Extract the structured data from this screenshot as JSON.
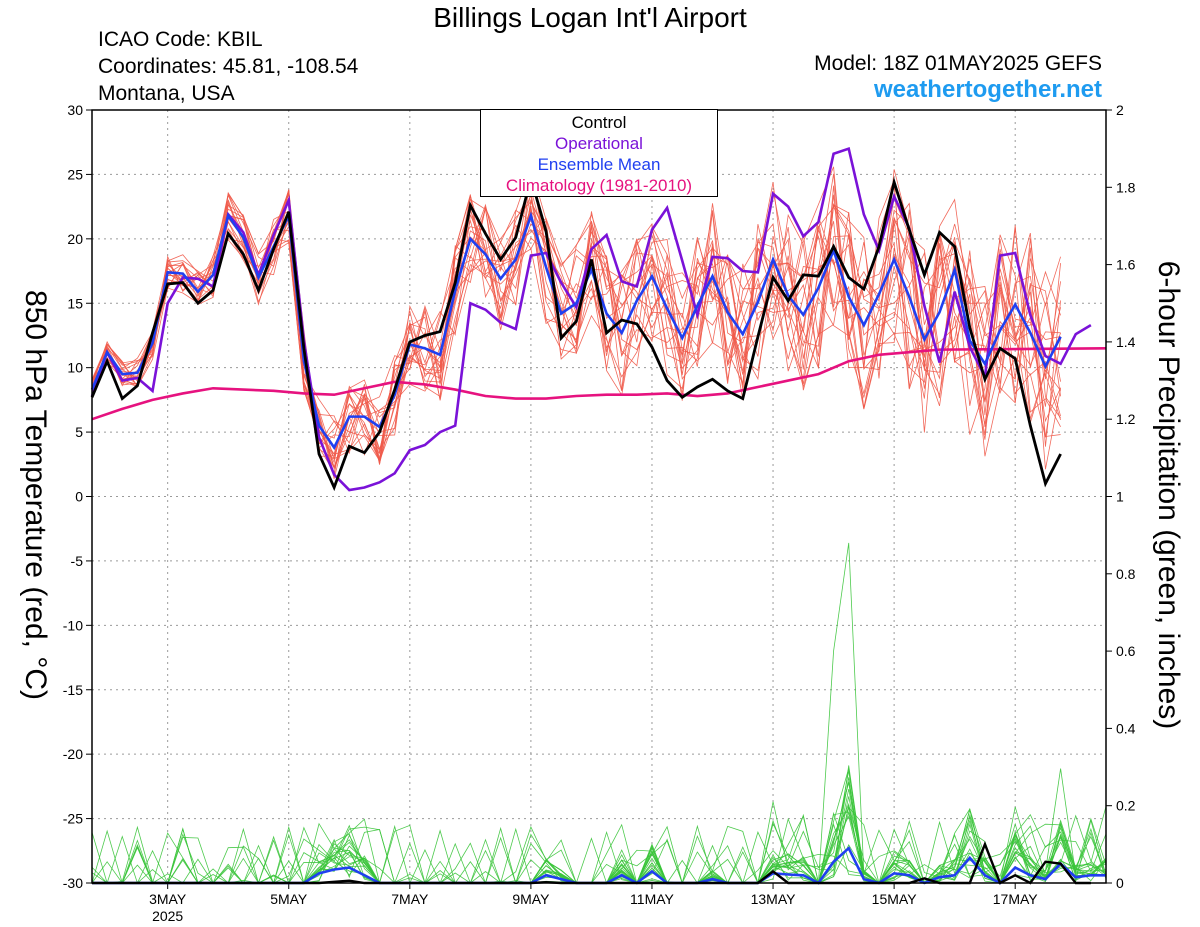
{
  "header": {
    "title": "Billings Logan Int'l Airport",
    "icao": "ICAO Code: KBIL",
    "coordinates": "Coordinates: 45.81, -108.54",
    "region": "Montana, USA",
    "model": "Model: 18Z 01MAY2025 GEFS",
    "website": "weathertogether.net"
  },
  "colors": {
    "members": "#f05a4a",
    "control": "#000000",
    "operational": "#7a12d8",
    "ensemble_mean": "#1f3ff0",
    "climatology": "#e6127f",
    "precip_members": "#3ac43a",
    "website": "#1e9bf0"
  },
  "chart_data": {
    "type": "line",
    "ylabel_left": "850 hPa Temperature (red, °C)",
    "ylabel_right": "6-hour Precipitation (green, inches)",
    "ylim_left": [
      -30,
      30
    ],
    "ylim_right": [
      0,
      2
    ],
    "yticks_left": [
      30,
      25,
      20,
      15,
      10,
      5,
      0,
      -5,
      -10,
      -15,
      -20,
      -25,
      -30
    ],
    "yticks_right": [
      "2",
      "1.8",
      "1.6",
      "1.4",
      "1.2",
      "1",
      "0.8",
      "0.6",
      "0.4",
      "0.2",
      "0"
    ],
    "xlim_hours": [
      -6,
      396
    ],
    "x_units": "hours after 02 May 2025 00Z",
    "x_ticks": [
      {
        "hour": 24,
        "label": "3MAY",
        "sub": "2025"
      },
      {
        "hour": 72,
        "label": "5MAY",
        "sub": ""
      },
      {
        "hour": 120,
        "label": "7MAY",
        "sub": ""
      },
      {
        "hour": 168,
        "label": "9MAY",
        "sub": ""
      },
      {
        "hour": 216,
        "label": "11MAY",
        "sub": ""
      },
      {
        "hour": 264,
        "label": "13MAY",
        "sub": ""
      },
      {
        "hour": 312,
        "label": "15MAY",
        "sub": ""
      },
      {
        "hour": 360,
        "label": "17MAY",
        "sub": ""
      }
    ],
    "legend": [
      "Control",
      "Operational",
      "Ensemble Mean",
      "Climatology (1981-2010)"
    ],
    "series_temp": {
      "x_start_hour": -6,
      "x_step_hours": 6,
      "control": [
        7.7,
        10.5,
        7.6,
        8.6,
        12.7,
        16.5,
        16.6,
        15.0,
        16.0,
        20.4,
        18.8,
        16.0,
        19.2,
        22.1,
        11.5,
        3.3,
        0.7,
        3.9,
        3.4,
        5.0,
        8.3,
        12.0,
        12.5,
        12.8,
        16.6,
        22.6,
        20.4,
        18.4,
        20.1,
        24.7,
        20.6,
        12.3,
        13.6,
        18.4,
        12.7,
        13.7,
        13.4,
        11.6,
        9.0,
        7.7,
        8.5,
        9.1,
        8.2,
        7.6,
        12.4,
        17.0,
        15.2,
        17.2,
        17.1,
        19.4,
        17.0,
        16.1,
        19.4,
        24.4,
        20.7,
        17.2,
        20.5,
        19.4,
        13.1,
        9.1,
        11.5,
        10.7,
        5.5,
        1.0,
        3.3
      ],
      "operational": [
        7.8,
        11.2,
        9.0,
        9.2,
        8.2,
        15.0,
        17.0,
        16.9,
        16.3,
        21.9,
        20.5,
        17.2,
        20.3,
        23.0,
        12.1,
        4.6,
        1.7,
        0.5,
        0.7,
        1.1,
        1.8,
        3.6,
        4.0,
        5.0,
        5.5,
        15.0,
        14.5,
        13.5,
        13.0,
        18.7,
        18.9,
        16.6,
        14.7,
        19.2,
        20.3,
        16.7,
        16.3,
        20.7,
        22.4,
        18.3,
        14.1,
        18.6,
        18.5,
        17.5,
        17.4,
        23.5,
        22.5,
        20.2,
        21.3,
        26.6,
        27.0,
        21.9,
        19.1,
        23.3,
        20.8,
        14.8,
        10.4,
        15.9,
        11.6,
        9.3,
        18.7,
        18.9,
        14.1,
        10.9,
        10.3,
        12.6,
        13.3
      ],
      "ensemble_mean": [
        8.3,
        11.2,
        9.5,
        9.6,
        11.9,
        17.4,
        17.3,
        15.9,
        17.2,
        21.8,
        20.1,
        17.0,
        19.4,
        21.8,
        10.5,
        5.5,
        3.8,
        6.2,
        6.2,
        5.4,
        7.9,
        11.8,
        11.5,
        11.0,
        16.0,
        20.0,
        18.8,
        16.9,
        18.4,
        21.8,
        17.8,
        14.2,
        15.0,
        17.6,
        14.2,
        12.7,
        15.2,
        17.1,
        14.6,
        12.3,
        14.8,
        17.1,
        14.3,
        12.6,
        15.1,
        18.4,
        15.6,
        14.1,
        16.2,
        19.1,
        15.5,
        13.3,
        15.7,
        18.4,
        15.5,
        12.2,
        14.3,
        17.6,
        12.1,
        10.3,
        12.9,
        14.9,
        12.7,
        10.1,
        12.4
      ],
      "climatology": [
        6.0,
        6.8,
        7.5,
        8.0,
        8.4,
        8.3,
        8.2,
        8.0,
        7.9,
        8.4,
        8.9,
        8.7,
        8.3,
        7.8,
        7.6,
        7.6,
        7.8,
        7.9,
        7.9,
        8.0,
        7.8,
        8.0,
        8.5,
        9.0,
        9.5,
        10.5,
        11.0,
        11.2,
        11.4,
        11.5
      ],
      "climatology_hours": [
        -6,
        6,
        18,
        30,
        42,
        54,
        66,
        78,
        90,
        102,
        114,
        126,
        138,
        150,
        162,
        174,
        186,
        198,
        210,
        222,
        234,
        246,
        258,
        270,
        282,
        294,
        306,
        318,
        330,
        396
      ]
    },
    "series_precip": {
      "x_start_hour": -6,
      "x_step_hours": 6,
      "control": [
        0,
        0,
        0,
        0,
        0,
        0,
        0,
        0,
        0,
        0,
        0,
        0,
        0,
        0,
        0,
        0,
        0.003,
        0.006,
        0,
        0,
        0,
        0,
        0,
        0,
        0,
        0,
        0,
        0,
        0,
        0,
        0.002,
        0,
        0,
        0,
        0,
        0,
        0,
        0,
        0,
        0,
        0,
        0,
        0,
        0,
        0,
        0.03,
        0,
        0,
        0,
        0,
        0,
        0,
        0,
        0,
        0,
        0.012,
        0,
        0,
        0,
        0.1,
        0,
        0.02,
        0,
        0.055,
        0.05,
        0,
        0
      ],
      "ensemble_mean": [
        0,
        0,
        0,
        0,
        0,
        0,
        0,
        0,
        0,
        0,
        0,
        0,
        0,
        0,
        0,
        0.025,
        0.035,
        0.04,
        0.02,
        0,
        0,
        0,
        0,
        0,
        0,
        0,
        0,
        0,
        0,
        0,
        0.02,
        0.01,
        0,
        0,
        0,
        0.02,
        0,
        0.03,
        0,
        0,
        0,
        0.01,
        0,
        0,
        0,
        0.025,
        0.022,
        0.02,
        0,
        0.055,
        0.09,
        0.01,
        0,
        0.025,
        0.02,
        0,
        0.015,
        0.02,
        0.065,
        0.02,
        0,
        0.04,
        0.02,
        0.01,
        0.05,
        0.015,
        0.02,
        0.02
      ]
    }
  }
}
